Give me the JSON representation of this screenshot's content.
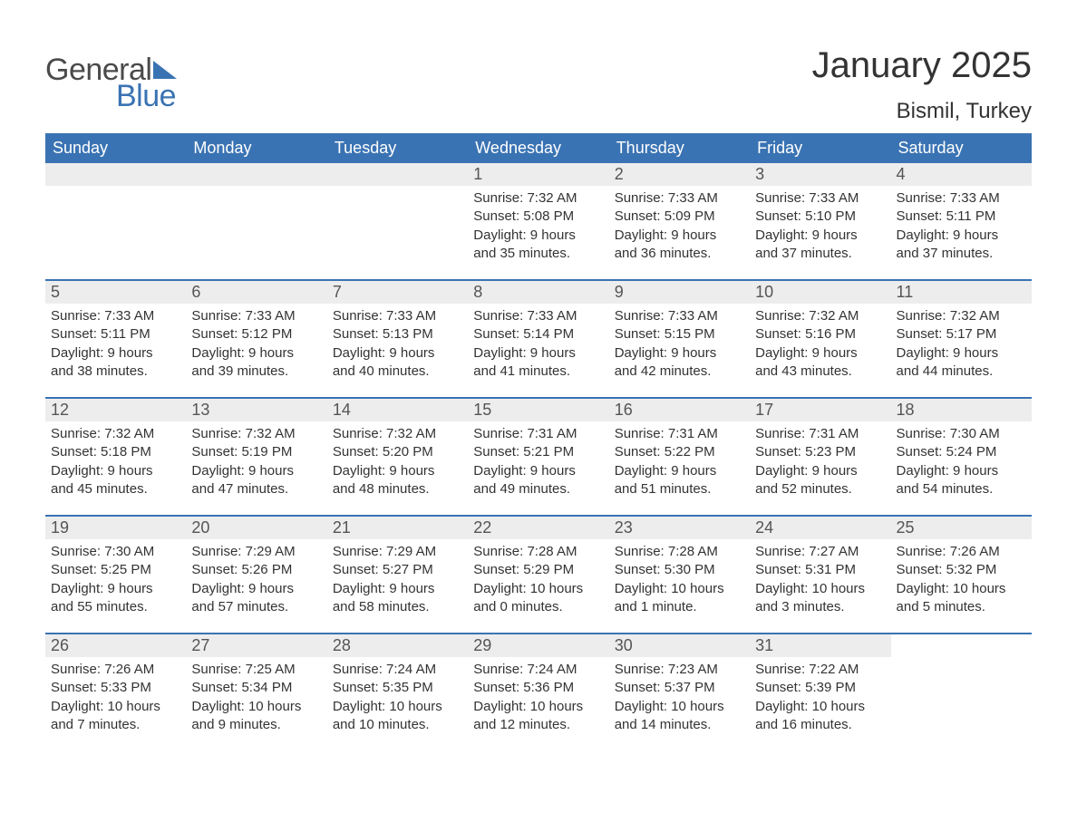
{
  "brand": {
    "word1": "General",
    "word2": "Blue"
  },
  "title": "January 2025",
  "location": "Bismil, Turkey",
  "colors": {
    "header_bg": "#3a73b3",
    "header_text": "#ffffff",
    "daynum_bg": "#ededed",
    "daynum_text": "#555555",
    "body_text": "#333333",
    "rule": "#3a73b3",
    "page_bg": "#ffffff"
  },
  "day_names": [
    "Sunday",
    "Monday",
    "Tuesday",
    "Wednesday",
    "Thursday",
    "Friday",
    "Saturday"
  ],
  "weeks": [
    [
      {
        "n": "",
        "empty": true
      },
      {
        "n": "",
        "empty": true
      },
      {
        "n": "",
        "empty": true
      },
      {
        "n": "1",
        "sunrise": "Sunrise: 7:32 AM",
        "sunset": "Sunset: 5:08 PM",
        "dl1": "Daylight: 9 hours",
        "dl2": "and 35 minutes."
      },
      {
        "n": "2",
        "sunrise": "Sunrise: 7:33 AM",
        "sunset": "Sunset: 5:09 PM",
        "dl1": "Daylight: 9 hours",
        "dl2": "and 36 minutes."
      },
      {
        "n": "3",
        "sunrise": "Sunrise: 7:33 AM",
        "sunset": "Sunset: 5:10 PM",
        "dl1": "Daylight: 9 hours",
        "dl2": "and 37 minutes."
      },
      {
        "n": "4",
        "sunrise": "Sunrise: 7:33 AM",
        "sunset": "Sunset: 5:11 PM",
        "dl1": "Daylight: 9 hours",
        "dl2": "and 37 minutes."
      }
    ],
    [
      {
        "n": "5",
        "sunrise": "Sunrise: 7:33 AM",
        "sunset": "Sunset: 5:11 PM",
        "dl1": "Daylight: 9 hours",
        "dl2": "and 38 minutes."
      },
      {
        "n": "6",
        "sunrise": "Sunrise: 7:33 AM",
        "sunset": "Sunset: 5:12 PM",
        "dl1": "Daylight: 9 hours",
        "dl2": "and 39 minutes."
      },
      {
        "n": "7",
        "sunrise": "Sunrise: 7:33 AM",
        "sunset": "Sunset: 5:13 PM",
        "dl1": "Daylight: 9 hours",
        "dl2": "and 40 minutes."
      },
      {
        "n": "8",
        "sunrise": "Sunrise: 7:33 AM",
        "sunset": "Sunset: 5:14 PM",
        "dl1": "Daylight: 9 hours",
        "dl2": "and 41 minutes."
      },
      {
        "n": "9",
        "sunrise": "Sunrise: 7:33 AM",
        "sunset": "Sunset: 5:15 PM",
        "dl1": "Daylight: 9 hours",
        "dl2": "and 42 minutes."
      },
      {
        "n": "10",
        "sunrise": "Sunrise: 7:32 AM",
        "sunset": "Sunset: 5:16 PM",
        "dl1": "Daylight: 9 hours",
        "dl2": "and 43 minutes."
      },
      {
        "n": "11",
        "sunrise": "Sunrise: 7:32 AM",
        "sunset": "Sunset: 5:17 PM",
        "dl1": "Daylight: 9 hours",
        "dl2": "and 44 minutes."
      }
    ],
    [
      {
        "n": "12",
        "sunrise": "Sunrise: 7:32 AM",
        "sunset": "Sunset: 5:18 PM",
        "dl1": "Daylight: 9 hours",
        "dl2": "and 45 minutes."
      },
      {
        "n": "13",
        "sunrise": "Sunrise: 7:32 AM",
        "sunset": "Sunset: 5:19 PM",
        "dl1": "Daylight: 9 hours",
        "dl2": "and 47 minutes."
      },
      {
        "n": "14",
        "sunrise": "Sunrise: 7:32 AM",
        "sunset": "Sunset: 5:20 PM",
        "dl1": "Daylight: 9 hours",
        "dl2": "and 48 minutes."
      },
      {
        "n": "15",
        "sunrise": "Sunrise: 7:31 AM",
        "sunset": "Sunset: 5:21 PM",
        "dl1": "Daylight: 9 hours",
        "dl2": "and 49 minutes."
      },
      {
        "n": "16",
        "sunrise": "Sunrise: 7:31 AM",
        "sunset": "Sunset: 5:22 PM",
        "dl1": "Daylight: 9 hours",
        "dl2": "and 51 minutes."
      },
      {
        "n": "17",
        "sunrise": "Sunrise: 7:31 AM",
        "sunset": "Sunset: 5:23 PM",
        "dl1": "Daylight: 9 hours",
        "dl2": "and 52 minutes."
      },
      {
        "n": "18",
        "sunrise": "Sunrise: 7:30 AM",
        "sunset": "Sunset: 5:24 PM",
        "dl1": "Daylight: 9 hours",
        "dl2": "and 54 minutes."
      }
    ],
    [
      {
        "n": "19",
        "sunrise": "Sunrise: 7:30 AM",
        "sunset": "Sunset: 5:25 PM",
        "dl1": "Daylight: 9 hours",
        "dl2": "and 55 minutes."
      },
      {
        "n": "20",
        "sunrise": "Sunrise: 7:29 AM",
        "sunset": "Sunset: 5:26 PM",
        "dl1": "Daylight: 9 hours",
        "dl2": "and 57 minutes."
      },
      {
        "n": "21",
        "sunrise": "Sunrise: 7:29 AM",
        "sunset": "Sunset: 5:27 PM",
        "dl1": "Daylight: 9 hours",
        "dl2": "and 58 minutes."
      },
      {
        "n": "22",
        "sunrise": "Sunrise: 7:28 AM",
        "sunset": "Sunset: 5:29 PM",
        "dl1": "Daylight: 10 hours",
        "dl2": "and 0 minutes."
      },
      {
        "n": "23",
        "sunrise": "Sunrise: 7:28 AM",
        "sunset": "Sunset: 5:30 PM",
        "dl1": "Daylight: 10 hours",
        "dl2": "and 1 minute."
      },
      {
        "n": "24",
        "sunrise": "Sunrise: 7:27 AM",
        "sunset": "Sunset: 5:31 PM",
        "dl1": "Daylight: 10 hours",
        "dl2": "and 3 minutes."
      },
      {
        "n": "25",
        "sunrise": "Sunrise: 7:26 AM",
        "sunset": "Sunset: 5:32 PM",
        "dl1": "Daylight: 10 hours",
        "dl2": "and 5 minutes."
      }
    ],
    [
      {
        "n": "26",
        "sunrise": "Sunrise: 7:26 AM",
        "sunset": "Sunset: 5:33 PM",
        "dl1": "Daylight: 10 hours",
        "dl2": "and 7 minutes."
      },
      {
        "n": "27",
        "sunrise": "Sunrise: 7:25 AM",
        "sunset": "Sunset: 5:34 PM",
        "dl1": "Daylight: 10 hours",
        "dl2": "and 9 minutes."
      },
      {
        "n": "28",
        "sunrise": "Sunrise: 7:24 AM",
        "sunset": "Sunset: 5:35 PM",
        "dl1": "Daylight: 10 hours",
        "dl2": "and 10 minutes."
      },
      {
        "n": "29",
        "sunrise": "Sunrise: 7:24 AM",
        "sunset": "Sunset: 5:36 PM",
        "dl1": "Daylight: 10 hours",
        "dl2": "and 12 minutes."
      },
      {
        "n": "30",
        "sunrise": "Sunrise: 7:23 AM",
        "sunset": "Sunset: 5:37 PM",
        "dl1": "Daylight: 10 hours",
        "dl2": "and 14 minutes."
      },
      {
        "n": "31",
        "sunrise": "Sunrise: 7:22 AM",
        "sunset": "Sunset: 5:39 PM",
        "dl1": "Daylight: 10 hours",
        "dl2": "and 16 minutes."
      },
      {
        "n": "",
        "trailing": true
      }
    ]
  ]
}
